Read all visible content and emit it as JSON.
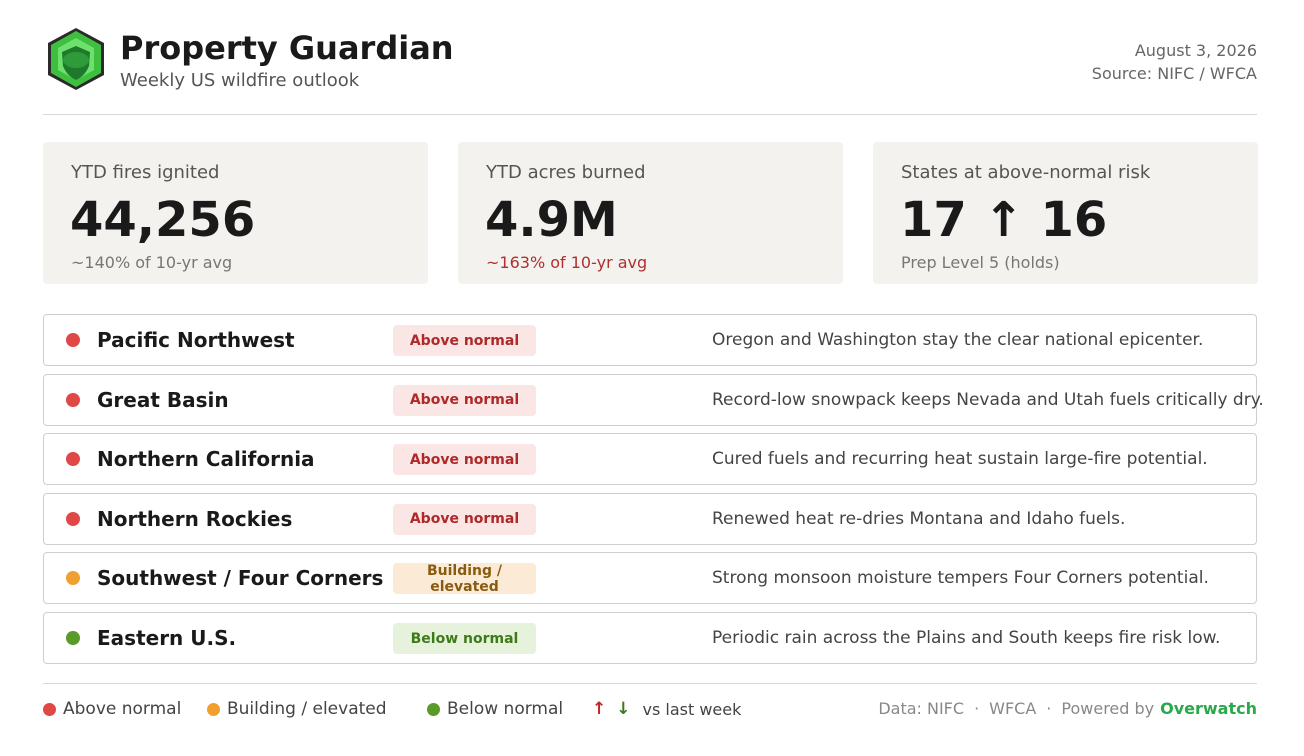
{
  "header": {
    "title": "Property Guardian",
    "subtitle": "Weekly US wildfire outlook",
    "date": "August 3, 2026",
    "source": "Source: NIFC / WFCA"
  },
  "stats": [
    {
      "label": "YTD fires ignited",
      "value": "44,256",
      "note": "~140% of 10-yr avg",
      "note_color": "#777777"
    },
    {
      "label": "YTD acres burned",
      "value": "4.9M",
      "note": "~163% of 10-yr avg",
      "note_color": "#b03030"
    },
    {
      "label": "States at above-normal risk",
      "value": "17 ↑ 16",
      "note": "Prep Level 5 (holds)",
      "note_color": "#777777"
    }
  ],
  "regions": [
    {
      "name": "Pacific Northwest",
      "status": "Above normal",
      "note": "Oregon and Washington stay the clear national epicenter.",
      "color": "#e04848",
      "badge_bg": "#fbe6e6",
      "badge_color": "#b02828"
    },
    {
      "name": "Great Basin",
      "status": "Above normal",
      "note": "Record-low snowpack keeps Nevada and Utah fuels critically dry.",
      "color": "#e04848",
      "badge_bg": "#fbe6e6",
      "badge_color": "#b02828"
    },
    {
      "name": "Northern California",
      "status": "Above normal",
      "note": "Cured fuels and recurring heat sustain large-fire potential.",
      "color": "#e04848",
      "badge_bg": "#fbe6e6",
      "badge_color": "#b02828"
    },
    {
      "name": "Northern Rockies",
      "status": "Above normal",
      "note": "Renewed heat re-dries Montana and Idaho fuels.",
      "color": "#e04848",
      "badge_bg": "#fbe6e6",
      "badge_color": "#b02828"
    },
    {
      "name": "Southwest / Four Corners",
      "status": "Building / elevated",
      "note": "Strong monsoon moisture tempers Four Corners potential.",
      "color": "#f0a030",
      "badge_bg": "#fbebd6",
      "badge_color": "#8a5a10"
    },
    {
      "name": "Eastern U.S.",
      "status": "Below normal",
      "note": "Periodic rain across the Plains and South keeps fire risk low.",
      "color": "#5a9a28",
      "badge_bg": "#e6f2dc",
      "badge_color": "#3f7a1a"
    }
  ],
  "legend": {
    "items": [
      {
        "label": "Above normal",
        "color": "#e04848"
      },
      {
        "label": "Building / elevated",
        "color": "#f0a030"
      },
      {
        "label": "Below normal",
        "color": "#5a9a28"
      }
    ],
    "up": "↑",
    "down": "↓",
    "trend": "vs last week"
  },
  "footer": {
    "data": "Data: NIFC",
    "sep": "·",
    "wfca": "WFCA",
    "powered": "Powered by",
    "brand": "Overwatch"
  }
}
